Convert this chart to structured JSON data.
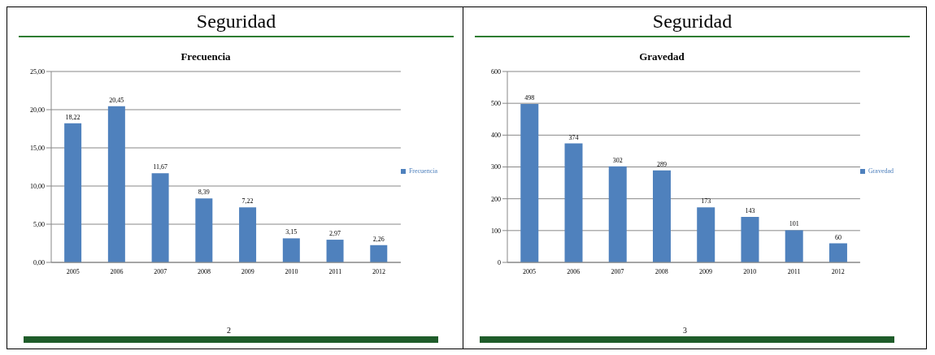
{
  "chart_data": [
    {
      "type": "bar",
      "title": "Seguridad",
      "subtitle": "Frecuencia",
      "categories": [
        "2005",
        "2006",
        "2007",
        "2008",
        "2009",
        "2010",
        "2011",
        "2012"
      ],
      "series": [
        {
          "name": "Frecuencia",
          "color": "#4f81bd",
          "values": [
            18.22,
            20.45,
            11.67,
            8.39,
            7.22,
            3.15,
            2.97,
            2.26
          ],
          "value_labels": [
            "18,22",
            "20,45",
            "11,67",
            "8,39",
            "7,22",
            "3,15",
            "2,97",
            "2,26"
          ]
        }
      ],
      "ylim": [
        0,
        25
      ],
      "yticks": [
        {
          "value": 0,
          "label": "0,00"
        },
        {
          "value": 5,
          "label": "5,00"
        },
        {
          "value": 10,
          "label": "10,00"
        },
        {
          "value": 15,
          "label": "15,00"
        },
        {
          "value": 20,
          "label": "20,00"
        },
        {
          "value": 25,
          "label": "25,00"
        }
      ],
      "grid": "y",
      "legend": "right",
      "annotations": [
        "2"
      ]
    },
    {
      "type": "bar",
      "title": "Seguridad",
      "subtitle": "Gravedad",
      "categories": [
        "2005",
        "2006",
        "2007",
        "2008",
        "2009",
        "2010",
        "2011",
        "2012"
      ],
      "series": [
        {
          "name": "Gravedad",
          "color": "#4f81bd",
          "values": [
            498,
            374,
            302,
            289,
            173,
            143,
            101,
            60
          ],
          "value_labels": [
            "498",
            "374",
            "302",
            "289",
            "173",
            "143",
            "101",
            "60"
          ]
        }
      ],
      "ylim": [
        0,
        600
      ],
      "yticks": [
        0,
        100,
        200,
        300,
        400,
        500,
        600
      ],
      "grid": "y",
      "legend": "right",
      "annotations": [
        "3"
      ]
    }
  ]
}
